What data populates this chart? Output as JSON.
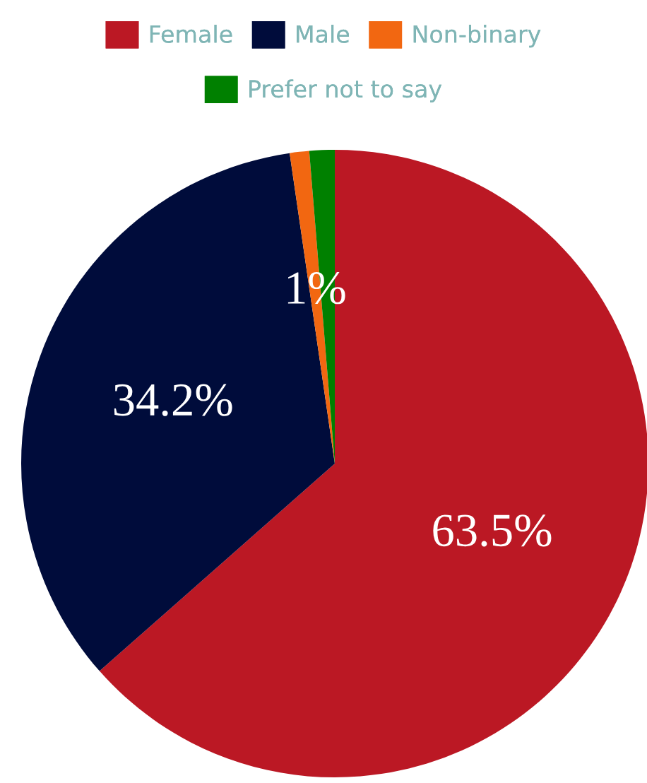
{
  "chart_data": {
    "type": "pie",
    "categories": [
      "Female",
      "Male",
      "Non-binary",
      "Prefer not to say"
    ],
    "values": [
      63.5,
      34.2,
      1.0,
      1.3
    ],
    "colors": [
      "#bb1824",
      "#000c3b",
      "#f26711",
      "#008000"
    ],
    "value_labels": [
      "63.5%",
      "34.2%",
      "1%",
      null
    ],
    "legend": "top"
  }
}
